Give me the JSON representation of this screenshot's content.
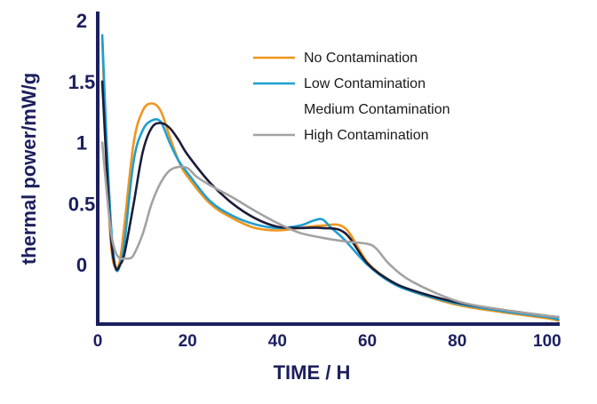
{
  "chart_data": {
    "type": "line",
    "title": "",
    "xlabel": "TIME / H",
    "ylabel": "thermal power/mW/g",
    "xlim": [
      0,
      102
    ],
    "ylim": [
      -0.5,
      2
    ],
    "xticks": [
      0,
      20,
      40,
      60,
      80,
      100
    ],
    "yticks": [
      0,
      0.5,
      1,
      1.5,
      2
    ],
    "ytick_labels": [
      "0",
      "0.5",
      "1",
      "1.5",
      "2"
    ],
    "grid": false,
    "legend_position": "top-right",
    "axis_color": "#1c1f5e",
    "series": [
      {
        "name": "No Contamination",
        "color": "#f0951e",
        "x": [
          1,
          2,
          3,
          4,
          5,
          6,
          8,
          10,
          12,
          14,
          16,
          18,
          20,
          25,
          30,
          35,
          40,
          45,
          50,
          55,
          60,
          65,
          70,
          80,
          90,
          100,
          102.5
        ],
        "y": [
          1.86,
          0.8,
          0.15,
          -0.03,
          0.05,
          0.35,
          1.0,
          1.26,
          1.32,
          1.26,
          1.05,
          0.85,
          0.72,
          0.5,
          0.38,
          0.3,
          0.28,
          0.3,
          0.32,
          0.3,
          0.02,
          -0.13,
          -0.22,
          -0.33,
          -0.39,
          -0.44,
          -0.46
        ]
      },
      {
        "name": "Low Contamination",
        "color": "#1e9fd0",
        "x": [
          1,
          2,
          3,
          4,
          5,
          6,
          8,
          10,
          12,
          14,
          16,
          18,
          20,
          25,
          30,
          35,
          40,
          45,
          48,
          50,
          52,
          55,
          60,
          65,
          70,
          80,
          90,
          100,
          102.5
        ],
        "y": [
          1.88,
          1.0,
          0.3,
          -0.03,
          0.0,
          0.2,
          0.85,
          1.1,
          1.18,
          1.17,
          1.0,
          0.85,
          0.75,
          0.52,
          0.4,
          0.33,
          0.3,
          0.32,
          0.36,
          0.37,
          0.3,
          0.2,
          0.0,
          -0.14,
          -0.22,
          -0.32,
          -0.38,
          -0.43,
          -0.45
        ]
      },
      {
        "name": "Medium Contamination",
        "color": "#1a1d3a",
        "x": [
          1,
          2,
          3,
          4,
          5,
          6,
          8,
          10,
          12,
          14,
          16,
          18,
          20,
          25,
          30,
          35,
          40,
          45,
          50,
          55,
          60,
          65,
          70,
          80,
          90,
          100,
          102.5
        ],
        "y": [
          1.5,
          0.8,
          0.2,
          -0.03,
          0.0,
          0.1,
          0.5,
          0.92,
          1.12,
          1.16,
          1.12,
          1.02,
          0.9,
          0.67,
          0.5,
          0.38,
          0.31,
          0.3,
          0.3,
          0.26,
          0.01,
          -0.13,
          -0.21,
          -0.31,
          -0.37,
          -0.42,
          -0.43
        ]
      },
      {
        "name": "High Contamination",
        "color": "#a2a2a2",
        "x": [
          1,
          2,
          3,
          4,
          5,
          6,
          7,
          8,
          10,
          12,
          14,
          16,
          18,
          20,
          22,
          25,
          30,
          35,
          40,
          45,
          50,
          55,
          60,
          62,
          65,
          70,
          80,
          90,
          100,
          102.5
        ],
        "y": [
          1.0,
          0.6,
          0.25,
          0.1,
          0.05,
          0.05,
          0.05,
          0.08,
          0.25,
          0.5,
          0.67,
          0.77,
          0.8,
          0.79,
          0.72,
          0.65,
          0.55,
          0.44,
          0.34,
          0.26,
          0.22,
          0.19,
          0.17,
          0.13,
          0.0,
          -0.14,
          -0.3,
          -0.37,
          -0.42,
          -0.43
        ]
      }
    ]
  }
}
